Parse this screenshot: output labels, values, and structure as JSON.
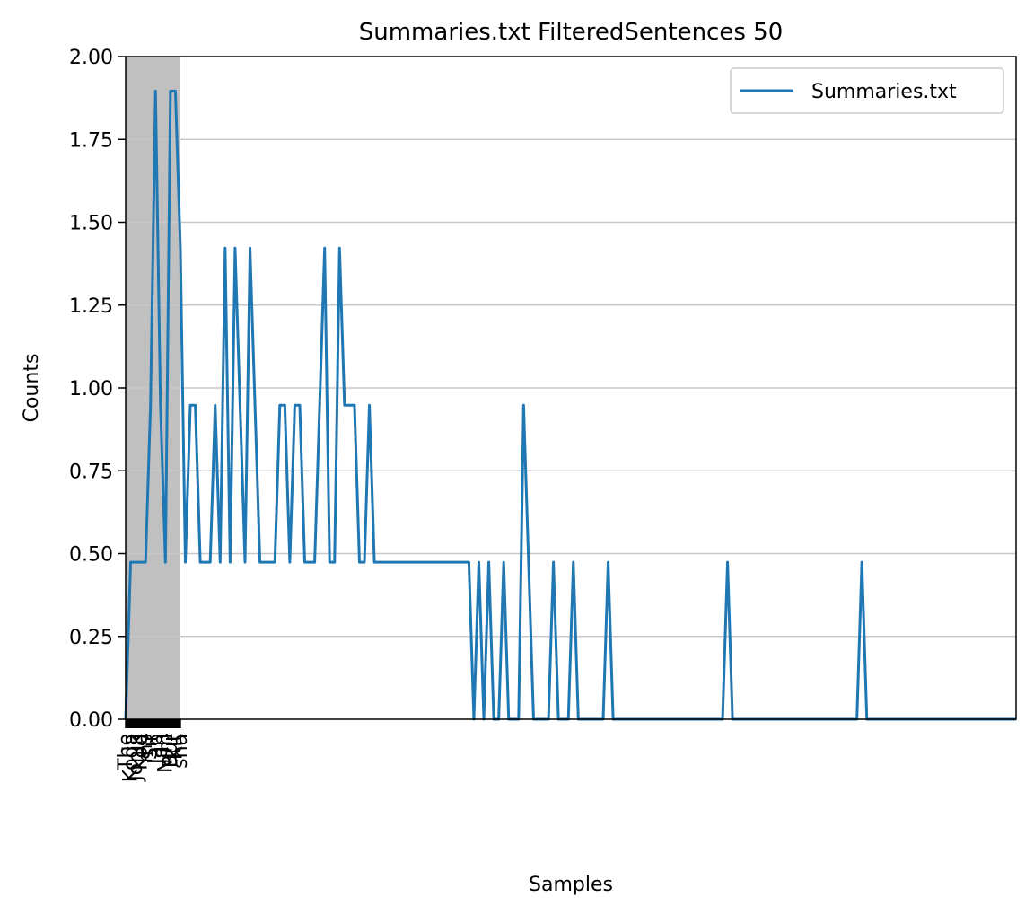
{
  "chart_data": {
    "type": "line",
    "title": "Summaries.txt FilteredSentences 50",
    "xlabel": "Samples",
    "ylabel": "Counts",
    "ylim": [
      0,
      2.0
    ],
    "yticks": [
      "0.00",
      "0.25",
      "0.50",
      "0.75",
      "1.00",
      "1.25",
      "1.50",
      "1.75",
      "2.00"
    ],
    "grid": "y",
    "legend_position": "top-right",
    "series_color": "#1f77b4",
    "highlight_color": "#c0c0c0",
    "highlight_range": [
      0,
      11
    ],
    "x_count": 180,
    "x_tick_labels": [
      "The",
      "Koda",
      "Jonik",
      "Kod",
      "ms",
      "Sir",
      "Jap",
      "lan",
      "Nim",
      "Bur",
      "Kit",
      "sha"
    ],
    "series": [
      {
        "name": "Summaries.txt",
        "peaks": [
          [
            1,
            0.474
          ],
          [
            2,
            0.474
          ],
          [
            3,
            0.474
          ],
          [
            4,
            0.474
          ],
          [
            5,
            0.948
          ],
          [
            6,
            1.896
          ],
          [
            7,
            0.948
          ],
          [
            8,
            0.474
          ],
          [
            9,
            1.896
          ],
          [
            10,
            1.896
          ],
          [
            11,
            1.422
          ],
          [
            12,
            0.474
          ],
          [
            13,
            0.948
          ],
          [
            14,
            0.948
          ],
          [
            15,
            0.474
          ],
          [
            16,
            0.474
          ],
          [
            17,
            0.474
          ],
          [
            18,
            0.948
          ],
          [
            19,
            0.474
          ],
          [
            20,
            1.422
          ],
          [
            21,
            0.474
          ],
          [
            22,
            1.422
          ],
          [
            23,
            0.948
          ],
          [
            24,
            0.474
          ],
          [
            25,
            1.422
          ],
          [
            26,
            0.948
          ],
          [
            27,
            0.474
          ],
          [
            28,
            0.474
          ],
          [
            29,
            0.474
          ],
          [
            30,
            0.474
          ],
          [
            31,
            0.948
          ],
          [
            32,
            0.948
          ],
          [
            33,
            0.474
          ],
          [
            34,
            0.948
          ],
          [
            35,
            0.948
          ],
          [
            36,
            0.474
          ],
          [
            37,
            0.474
          ],
          [
            38,
            0.474
          ],
          [
            39,
            0.948
          ],
          [
            40,
            1.422
          ],
          [
            41,
            0.474
          ],
          [
            42,
            0.474
          ],
          [
            43,
            1.422
          ],
          [
            44,
            0.948
          ],
          [
            45,
            0.948
          ],
          [
            46,
            0.948
          ],
          [
            47,
            0.474
          ],
          [
            48,
            0.474
          ],
          [
            49,
            0.948
          ],
          [
            50,
            0.474
          ],
          [
            51,
            0.474
          ],
          [
            52,
            0.474
          ],
          [
            53,
            0.474
          ],
          [
            54,
            0.474
          ],
          [
            55,
            0.474
          ],
          [
            56,
            0.474
          ],
          [
            57,
            0.474
          ],
          [
            58,
            0.474
          ],
          [
            59,
            0.474
          ],
          [
            60,
            0.474
          ],
          [
            61,
            0.474
          ],
          [
            62,
            0.474
          ],
          [
            63,
            0.474
          ],
          [
            64,
            0.474
          ],
          [
            65,
            0.474
          ],
          [
            66,
            0.474
          ],
          [
            67,
            0.474
          ],
          [
            68,
            0.474
          ],
          [
            69,
            0.474
          ],
          [
            71,
            0.474
          ],
          [
            73,
            0.474
          ],
          [
            76,
            0.474
          ],
          [
            80,
            0.948
          ],
          [
            81,
            0.474
          ],
          [
            86,
            0.474
          ],
          [
            90,
            0.474
          ],
          [
            97,
            0.474
          ],
          [
            121,
            0.474
          ],
          [
            148,
            0.474
          ]
        ]
      }
    ]
  }
}
